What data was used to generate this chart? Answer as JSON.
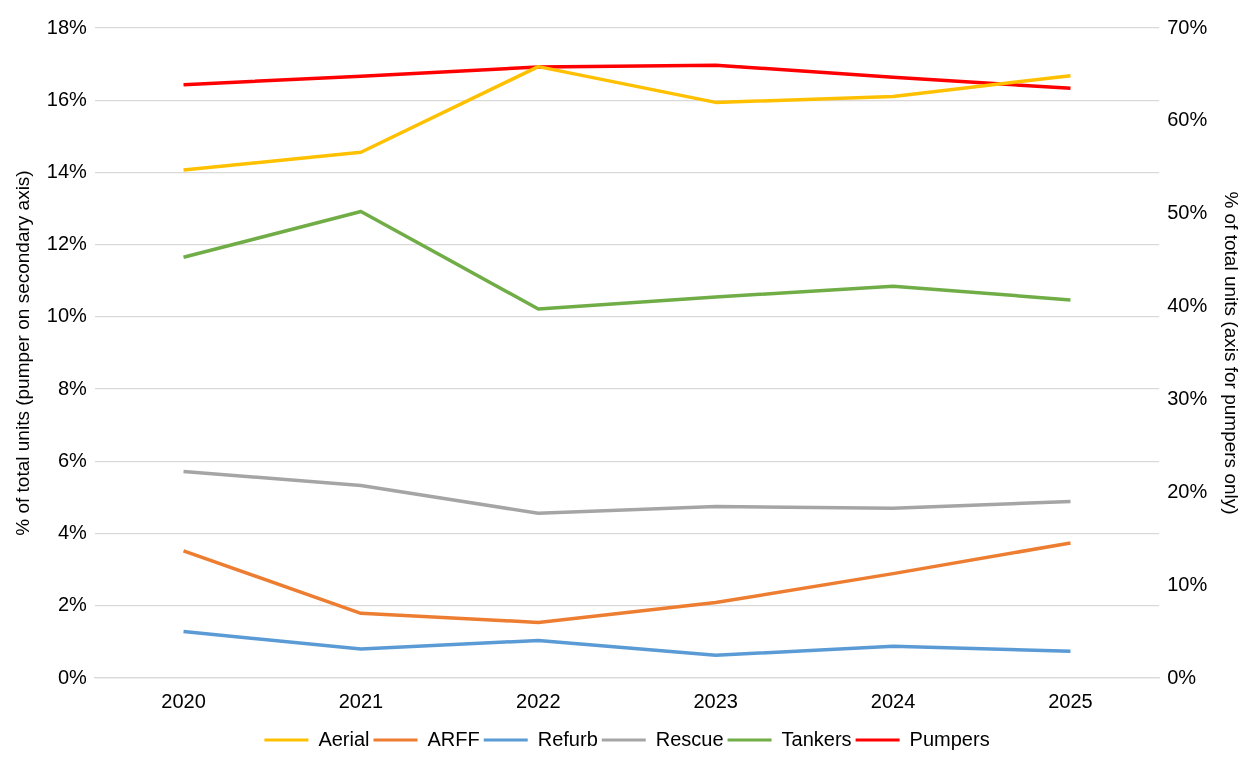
{
  "chart_data": {
    "type": "line",
    "categories": [
      "2020",
      "2021",
      "2022",
      "2023",
      "2024",
      "2025"
    ],
    "ylabel": "% of total units (pumper on secondary axis)",
    "y2label": "% of total units (axis for pumpers only)",
    "ylim": [
      0,
      18
    ],
    "yticks": [
      {
        "value": 0,
        "label": "0%"
      },
      {
        "value": 2,
        "label": "2%"
      },
      {
        "value": 4,
        "label": "4%"
      },
      {
        "value": 6,
        "label": "6%"
      },
      {
        "value": 8,
        "label": "8%"
      },
      {
        "value": 10,
        "label": "10%"
      },
      {
        "value": 12,
        "label": "12%"
      },
      {
        "value": 14,
        "label": "14%"
      },
      {
        "value": 16,
        "label": "16%"
      },
      {
        "value": 18,
        "label": "18%"
      }
    ],
    "y2lim": [
      0,
      70
    ],
    "y2ticks": [
      {
        "value": 0,
        "label": "0%"
      },
      {
        "value": 10,
        "label": "10%"
      },
      {
        "value": 20,
        "label": "20%"
      },
      {
        "value": 30,
        "label": "30%"
      },
      {
        "value": 40,
        "label": "40%"
      },
      {
        "value": 50,
        "label": "50%"
      },
      {
        "value": 60,
        "label": "60%"
      },
      {
        "value": 70,
        "label": "70%"
      }
    ],
    "grid": "y",
    "legend": "bottom",
    "marker": "none",
    "line_style": "solid",
    "series": [
      {
        "name": "Aerial",
        "color": "#ffc000",
        "values": [
          14.07,
          14.56,
          16.93,
          15.94,
          16.1,
          16.68
        ]
      },
      {
        "name": "ARFF",
        "color": "#ed7d31",
        "values": [
          3.52,
          1.79,
          1.54,
          2.09,
          2.89,
          3.74
        ]
      },
      {
        "name": "Refurb",
        "color": "#5b9bd5",
        "values": [
          1.29,
          0.8,
          1.04,
          0.63,
          0.88,
          0.74
        ]
      },
      {
        "name": "Rescue",
        "color": "#a5a5a5",
        "values": [
          5.72,
          5.33,
          4.56,
          4.75,
          4.7,
          4.89
        ]
      },
      {
        "name": "Tankers",
        "color": "#70ad47",
        "values": [
          11.65,
          12.92,
          10.22,
          10.55,
          10.85,
          10.47
        ]
      },
      {
        "name": "Pumpers",
        "color": "#ff0000",
        "axis": "y2",
        "values": [
          63.9,
          64.8,
          65.8,
          66.0,
          64.7,
          63.5
        ]
      }
    ]
  }
}
